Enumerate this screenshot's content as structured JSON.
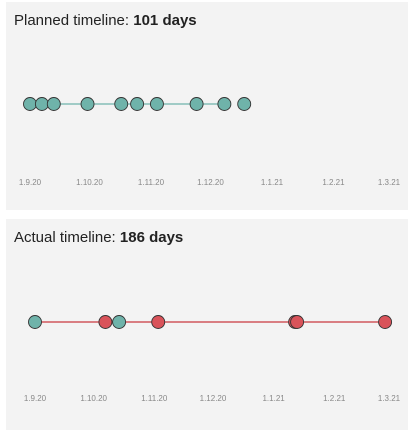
{
  "colors": {
    "planned": "#6fb3aa",
    "actual": "#d9535a",
    "line_planned": "#6fb3aa",
    "line_actual": "#c9383f",
    "tick_text": "#888888",
    "outline": "#333333"
  },
  "chart_data": [
    {
      "type": "scatter",
      "title_prefix": "Planned timeline:",
      "title_value": "101 days",
      "x_axis": {
        "type": "date",
        "min": "2020-09-01",
        "max": "2021-03-01"
      },
      "x_ticks": [
        {
          "date": "2020-09-01",
          "label": "1.9.20"
        },
        {
          "date": "2020-10-01",
          "label": "1.10.20"
        },
        {
          "date": "2020-11-01",
          "label": "1.11.20"
        },
        {
          "date": "2020-12-01",
          "label": "1.12.20"
        },
        {
          "date": "2021-01-01",
          "label": "1.1.21"
        },
        {
          "date": "2021-02-01",
          "label": "1.2.21"
        },
        {
          "date": "2021-03-01",
          "label": "1.3.21"
        }
      ],
      "line": {
        "from": "2020-09-01",
        "to": "2020-12-11",
        "color_key": "line_planned"
      },
      "points": [
        {
          "date": "2020-09-01",
          "color_key": "planned"
        },
        {
          "date": "2020-09-07",
          "color_key": "planned"
        },
        {
          "date": "2020-09-13",
          "color_key": "planned"
        },
        {
          "date": "2020-09-30",
          "color_key": "planned"
        },
        {
          "date": "2020-10-17",
          "color_key": "planned"
        },
        {
          "date": "2020-10-25",
          "color_key": "planned"
        },
        {
          "date": "2020-11-04",
          "color_key": "planned"
        },
        {
          "date": "2020-11-24",
          "color_key": "planned"
        },
        {
          "date": "2020-12-08",
          "color_key": "planned"
        },
        {
          "date": "2020-12-18",
          "color_key": "planned"
        }
      ]
    },
    {
      "type": "scatter",
      "title_prefix": "Actual timeline:",
      "title_value": "186 days",
      "x_axis": {
        "type": "date",
        "min": "2020-09-01",
        "max": "2021-03-01"
      },
      "x_ticks": [
        {
          "date": "2020-09-01",
          "label": "1.9.20"
        },
        {
          "date": "2020-10-01",
          "label": "1.10.20"
        },
        {
          "date": "2020-11-01",
          "label": "1.11.20"
        },
        {
          "date": "2020-12-01",
          "label": "1.12.20"
        },
        {
          "date": "2021-01-01",
          "label": "1.1.21"
        },
        {
          "date": "2021-02-01",
          "label": "1.2.21"
        },
        {
          "date": "2021-03-01",
          "label": "1.3.21"
        }
      ],
      "line": {
        "from": "2020-09-01",
        "to": "2021-03-01",
        "color_key": "line_actual"
      },
      "points": [
        {
          "date": "2020-09-01",
          "color_key": "planned"
        },
        {
          "date": "2020-10-07",
          "color_key": "actual"
        },
        {
          "date": "2020-10-14",
          "color_key": "planned"
        },
        {
          "date": "2020-11-03",
          "color_key": "actual"
        },
        {
          "date": "2021-01-12",
          "color_key": "actual"
        },
        {
          "date": "2021-01-13",
          "color_key": "actual"
        },
        {
          "date": "2021-02-27",
          "color_key": "actual"
        }
      ]
    }
  ]
}
